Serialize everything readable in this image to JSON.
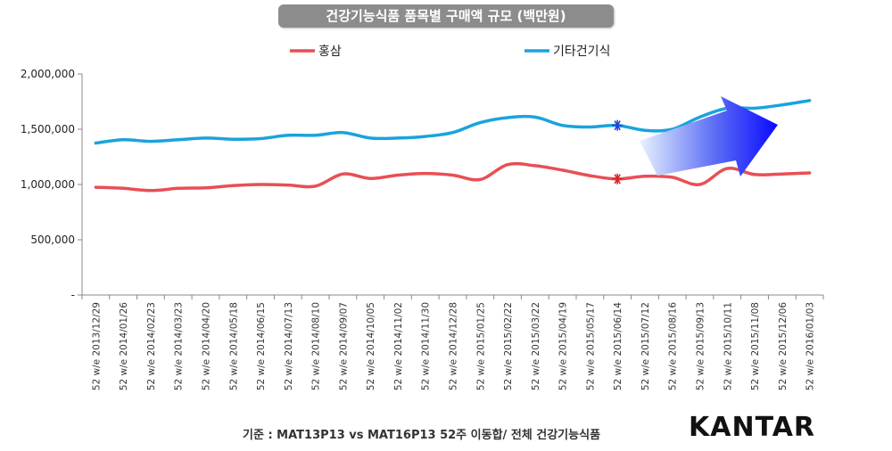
{
  "footnote": "기준 : MAT13P13 vs MAT16P13 52주 이동합/ 전체 건강기능식품",
  "brand": "KANTAR",
  "chart_data": {
    "type": "line",
    "title": "건강기능식품 품목별 구매액 규모 (백만원)",
    "xlabel": "",
    "ylabel": "",
    "ylim": [
      0,
      2000000
    ],
    "y_ticks": [
      0,
      500000,
      1000000,
      1500000,
      2000000
    ],
    "y_tick_labels": [
      "-",
      "500,000",
      "1,000,000",
      "1,500,000",
      "2,000,000"
    ],
    "grid": false,
    "legend_position": "top",
    "categories": [
      "52 w/e 2013/12/29",
      "52 w/e 2014/01/26",
      "52 w/e 2014/02/23",
      "52 w/e 2014/03/23",
      "52 w/e 2014/04/20",
      "52 w/e 2014/05/18",
      "52 w/e 2014/06/15",
      "52 w/e 2014/07/13",
      "52 w/e 2014/08/10",
      "52 w/e 2014/09/07",
      "52 w/e 2014/10/05",
      "52 w/e 2014/11/02",
      "52 w/e 2014/11/30",
      "52 w/e 2014/12/28",
      "52 w/e 2015/01/25",
      "52 w/e 2015/02/22",
      "52 w/e 2015/03/22",
      "52 w/e 2015/04/19",
      "52 w/e 2015/05/17",
      "52 w/e 2015/06/14",
      "52 w/e 2015/07/12",
      "52 w/e 2015/08/16",
      "52 w/e 2015/09/13",
      "52 w/e 2015/10/11",
      "52 w/e 2015/11/08",
      "52 w/e 2015/12/06",
      "52 w/e 2016/01/03"
    ],
    "series": [
      {
        "name": "홍삼",
        "color": "#e84f54",
        "values": [
          975000,
          965000,
          945000,
          965000,
          970000,
          990000,
          1000000,
          995000,
          985000,
          1095000,
          1055000,
          1085000,
          1100000,
          1085000,
          1045000,
          1180000,
          1170000,
          1130000,
          1080000,
          1050000,
          1075000,
          1065000,
          1000000,
          1145000,
          1090000,
          1095000,
          1105000
        ]
      },
      {
        "name": "기타건기식",
        "color": "#1aa3dd",
        "values": [
          1375000,
          1405000,
          1390000,
          1405000,
          1420000,
          1410000,
          1415000,
          1445000,
          1445000,
          1470000,
          1420000,
          1420000,
          1435000,
          1470000,
          1560000,
          1605000,
          1610000,
          1535000,
          1520000,
          1535000,
          1490000,
          1500000,
          1610000,
          1690000,
          1690000,
          1720000,
          1760000
        ]
      }
    ],
    "markers": [
      {
        "series": "홍삼",
        "category": "52 w/e 2015/06/14",
        "symbol": "asterisk",
        "color": "#d9262b"
      },
      {
        "series": "기타건기식",
        "category": "52 w/e 2015/06/14",
        "symbol": "asterisk",
        "color": "#2a3fd6"
      }
    ],
    "annotation_arrow": {
      "direction": "up-right",
      "color": "#1a1aff"
    }
  }
}
